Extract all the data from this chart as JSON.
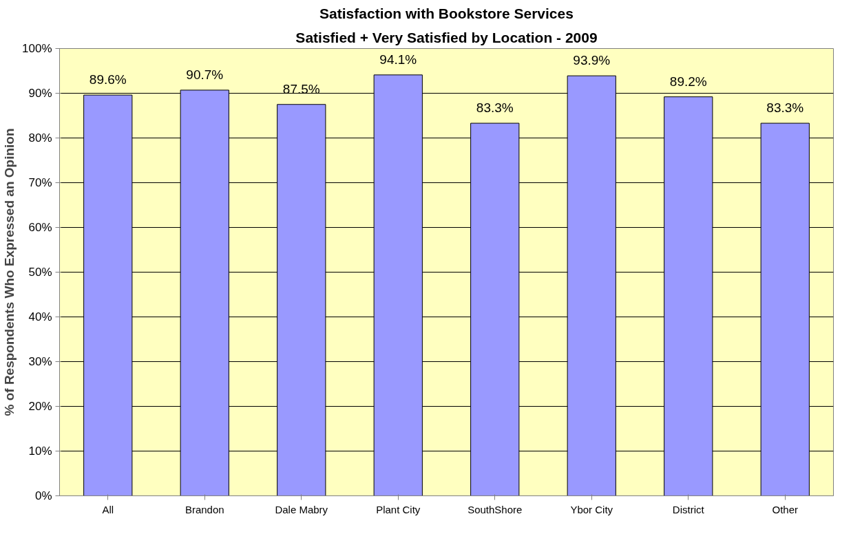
{
  "chart_data": {
    "type": "bar",
    "title": "Satisfaction with Bookstore Services",
    "subtitle": "Satisfied + Very Satisfied by Location - 2009",
    "ylabel": "% of Respondents Who Expressed an Opinion",
    "categories": [
      "All",
      "Brandon",
      "Dale Mabry",
      "Plant City",
      "SouthShore",
      "Ybor City",
      "District",
      "Other"
    ],
    "values": [
      89.6,
      90.7,
      87.5,
      94.1,
      83.3,
      93.9,
      89.2,
      83.3
    ],
    "value_labels": [
      "89.6%",
      "90.7%",
      "87.5%",
      "94.1%",
      "83.3%",
      "93.9%",
      "89.2%",
      "83.3%"
    ],
    "color": "#9999ff",
    "ylim": [
      0,
      100
    ],
    "yticks": [
      {
        "value": 0,
        "label": "0%"
      },
      {
        "value": 10,
        "label": "10%"
      },
      {
        "value": 20,
        "label": "20%"
      },
      {
        "value": 30,
        "label": "30%"
      },
      {
        "value": 40,
        "label": "40%"
      },
      {
        "value": 50,
        "label": "50%"
      },
      {
        "value": 60,
        "label": "60%"
      },
      {
        "value": 70,
        "label": "70%"
      },
      {
        "value": 80,
        "label": "80%"
      },
      {
        "value": 90,
        "label": "90%"
      },
      {
        "value": 100,
        "label": "100%"
      }
    ],
    "grid": "y"
  }
}
